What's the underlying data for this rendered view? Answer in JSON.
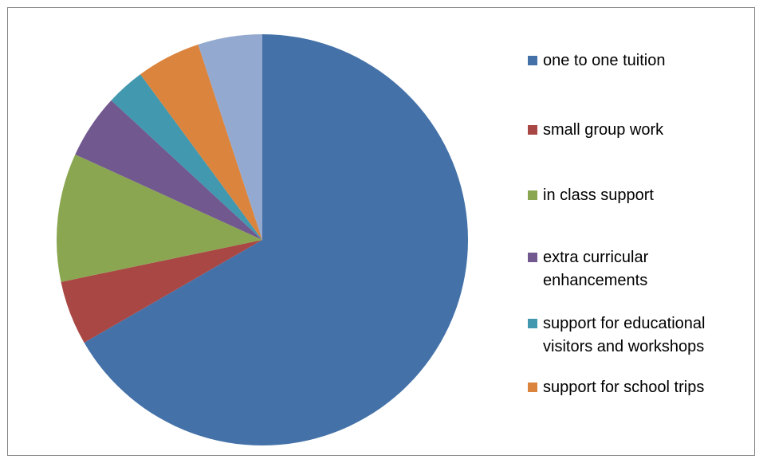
{
  "chart_data": {
    "type": "pie",
    "title": "",
    "start_angle_deg": 0,
    "direction": "clockwise",
    "series": [
      {
        "values": [
          66,
          5,
          10,
          5,
          3,
          5,
          5
        ],
        "categories": [
          "one to one tuition",
          "small group work",
          "in class support",
          "extra curricular enhancements",
          "support for educational visitors and workshops",
          "support for school trips",
          ""
        ]
      }
    ],
    "legend": {
      "placement": "right",
      "entries": [
        {
          "label": "one to one tuition",
          "color": "#4472a8"
        },
        {
          "label": "small group work",
          "color": "#a94744"
        },
        {
          "label": "in class support",
          "color": "#8aa651"
        },
        {
          "label": "extra curricular enhancements",
          "color": "#71588f"
        },
        {
          "label": "support for educational visitors and workshops",
          "color": "#4198af"
        },
        {
          "label": "support for school trips",
          "color": "#db843d"
        }
      ]
    },
    "colors": [
      "#4472a8",
      "#a94744",
      "#8aa651",
      "#71588f",
      "#4198af",
      "#db843d",
      "#93a9cf"
    ]
  }
}
